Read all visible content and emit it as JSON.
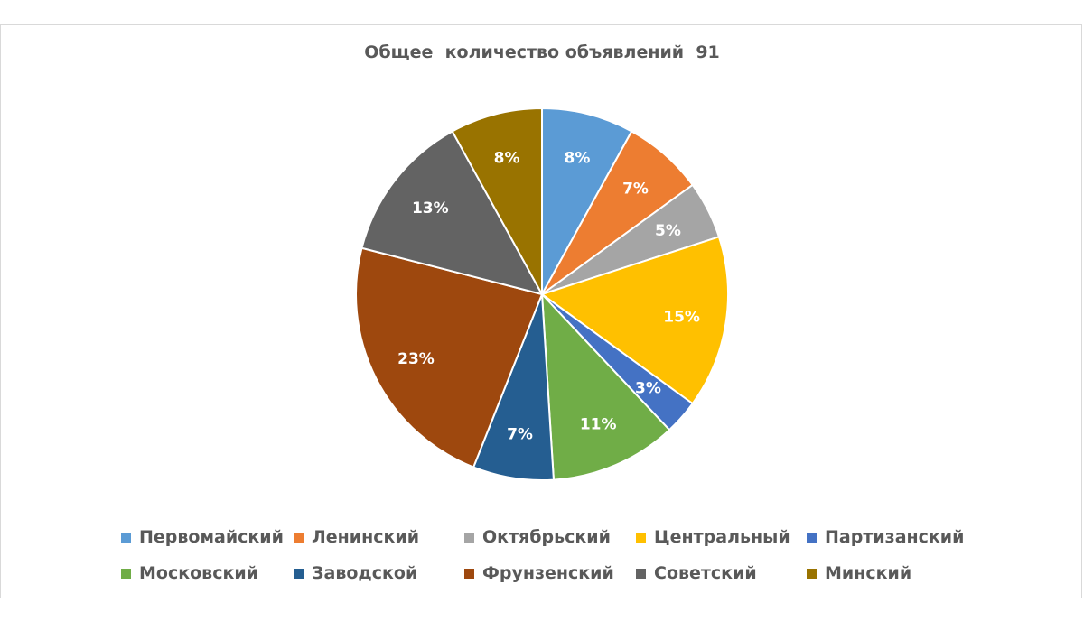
{
  "chart_data": {
    "type": "pie",
    "title": "Общее  количество объявлений  91",
    "categories": [
      "Первомайский",
      "Ленинский",
      "Октябрьский",
      "Центральный",
      "Партизанский",
      "Московский",
      "Заводской",
      "Фрунзенский",
      "Советский",
      "Минский"
    ],
    "values": [
      8,
      7,
      5,
      15,
      3,
      11,
      7,
      23,
      13,
      8
    ],
    "value_labels": [
      "8%",
      "7%",
      "5%",
      "15%",
      "3%",
      "11%",
      "7%",
      "23%",
      "13%",
      "8%"
    ],
    "colors": [
      "#5B9BD5",
      "#ED7D31",
      "#A5A5A5",
      "#FFC000",
      "#4472C4",
      "#70AD47",
      "#255E91",
      "#9E480E",
      "#636363",
      "#997300"
    ],
    "legend_position": "bottom"
  }
}
